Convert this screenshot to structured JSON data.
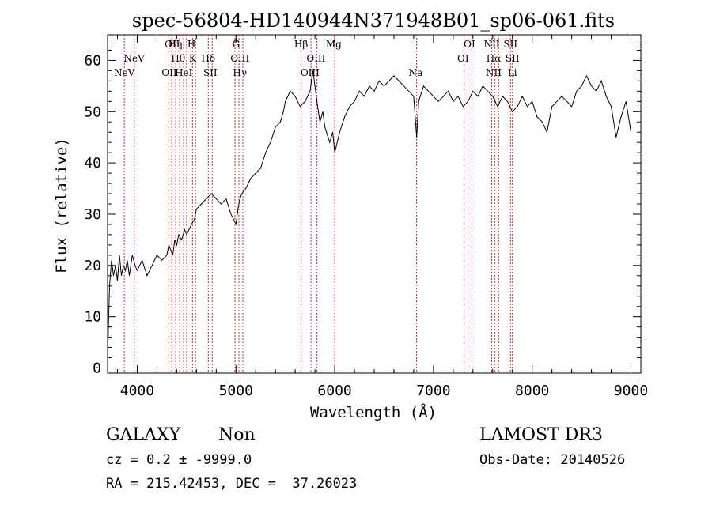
{
  "chart_data": {
    "type": "line",
    "title": "spec-56804-HD140944N371948B01_sp06-061.fits",
    "xlabel": "Wavelength (Å)",
    "ylabel": "Flux (relative)",
    "xlim": [
      3700,
      9100
    ],
    "ylim": [
      -1,
      65
    ],
    "x_ticks": [
      "4000",
      "5000",
      "6000",
      "7000",
      "8000",
      "9000"
    ],
    "y_ticks": [
      "0",
      "10",
      "20",
      "30",
      "40",
      "50",
      "60"
    ],
    "grid": false,
    "series": [
      {
        "color": "#000000",
        "x": [
          3700,
          3720,
          3740,
          3760,
          3780,
          3800,
          3820,
          3840,
          3860,
          3880,
          3900,
          3920,
          3950,
          3980,
          4000,
          4050,
          4100,
          4150,
          4200,
          4250,
          4300,
          4320,
          4340,
          4360,
          4380,
          4400,
          4420,
          4450,
          4480,
          4500,
          4550,
          4580,
          4600,
          4650,
          4700,
          4750,
          4800,
          4850,
          4900,
          4950,
          5000,
          5020,
          5040,
          5060,
          5100,
          5150,
          5200,
          5250,
          5300,
          5350,
          5400,
          5450,
          5480,
          5500,
          5550,
          5600,
          5650,
          5700,
          5750,
          5780,
          5800,
          5820,
          5850,
          5880,
          5900,
          5950,
          5980,
          6000,
          6050,
          6100,
          6150,
          6200,
          6250,
          6300,
          6350,
          6400,
          6450,
          6500,
          6550,
          6600,
          6650,
          6700,
          6750,
          6800,
          6830,
          6850,
          6900,
          6950,
          7000,
          7050,
          7100,
          7150,
          7200,
          7250,
          7300,
          7350,
          7400,
          7450,
          7500,
          7550,
          7600,
          7650,
          7700,
          7750,
          7800,
          7850,
          7900,
          7950,
          8000,
          8050,
          8100,
          8150,
          8200,
          8250,
          8300,
          8350,
          8400,
          8450,
          8500,
          8550,
          8600,
          8650,
          8700,
          8750,
          8800,
          8850,
          8900,
          8950,
          9000
        ],
        "y": [
          2,
          16,
          21,
          18,
          20,
          17,
          22,
          18,
          20,
          19,
          21,
          18,
          22,
          20,
          19,
          21,
          18,
          20,
          22,
          21,
          22,
          24,
          23,
          22,
          25,
          24,
          26,
          25,
          27,
          26,
          28,
          29,
          31,
          32,
          33,
          34,
          33,
          32,
          33,
          30,
          28,
          31,
          33,
          34,
          35,
          37,
          38,
          39,
          42,
          44,
          47,
          48,
          50,
          52,
          54,
          53,
          51,
          52,
          54,
          58,
          55,
          52,
          48,
          50,
          47,
          44,
          46,
          42,
          46,
          49,
          51,
          52,
          54,
          53,
          55,
          54,
          56,
          55,
          56,
          57,
          56,
          55,
          54,
          53,
          45,
          52,
          55,
          54,
          53,
          52,
          53,
          54,
          52,
          53,
          51,
          52,
          54,
          53,
          55,
          54,
          53,
          51,
          53,
          52,
          50,
          51,
          53,
          51,
          52,
          49,
          48,
          46,
          51,
          52,
          53,
          52,
          51,
          54,
          55,
          57,
          55,
          54,
          56,
          53,
          51,
          45,
          49,
          52,
          46
        ]
      }
    ],
    "annotations": {
      "lines": [
        {
          "label": "NeV",
          "x": 3870,
          "row": 2
        },
        {
          "label": "NeV",
          "x": 3970,
          "row": 1
        },
        {
          "label": "OII",
          "x": 4325,
          "row": 2
        },
        {
          "label": "OII",
          "x": 4355,
          "row": 0
        },
        {
          "label": "Hη",
          "x": 4385,
          "row": 0
        },
        {
          "label": "Hθ",
          "x": 4415,
          "row": 1
        },
        {
          "label": "HeI",
          "x": 4471,
          "row": 2
        },
        {
          "label": "H",
          "x": 4550,
          "row": 0
        },
        {
          "label": "K",
          "x": 4560,
          "row": 1
        },
        {
          "label": "Hδ",
          "x": 4720,
          "row": 1
        },
        {
          "label": "SII",
          "x": 4740,
          "row": 2
        },
        {
          "label": "G",
          "x": 5000,
          "row": 0
        },
        {
          "label": "OIII",
          "x": 5040,
          "row": 1
        },
        {
          "label": "Hγ",
          "x": 5040,
          "row": 2
        },
        {
          "label": "Hβ",
          "x": 5660,
          "row": 0
        },
        {
          "label": "OIII",
          "x": 5810,
          "row": 1
        },
        {
          "label": "OIII",
          "x": 5750,
          "row": 2
        },
        {
          "label": "Mg",
          "x": 5990,
          "row": 0
        },
        {
          "label": "Na",
          "x": 6820,
          "row": 2
        },
        {
          "label": "OI",
          "x": 7365,
          "row": 0
        },
        {
          "label": "OI",
          "x": 7300,
          "row": 1
        },
        {
          "label": "NII",
          "x": 7590,
          "row": 0
        },
        {
          "label": "Hα",
          "x": 7610,
          "row": 1
        },
        {
          "label": "NII",
          "x": 7610,
          "row": 2
        },
        {
          "label": "SII",
          "x": 7780,
          "row": 0
        },
        {
          "label": "SII",
          "x": 7800,
          "row": 1
        },
        {
          "label": "Li",
          "x": 7800,
          "row": 2
        }
      ],
      "vlines_x": [
        3870,
        3970,
        4320,
        4350,
        4390,
        4430,
        4470,
        4500,
        4560,
        4590,
        4720,
        4760,
        4990,
        5030,
        5070,
        5660,
        5760,
        5820,
        6000,
        6830,
        7310,
        7390,
        7590,
        7620,
        7660,
        7780,
        7800
      ],
      "vline_color": "#cc2a2a"
    }
  },
  "info": {
    "class_label": "GALAXY",
    "subclass": "Non",
    "survey": "LAMOST DR3",
    "cz_text": "cz = 0.2 ± -9999.0",
    "obs_date_text": "Obs-Date: 20140526",
    "radec_text": "RA = 215.42453, DEC =  37.26023"
  }
}
